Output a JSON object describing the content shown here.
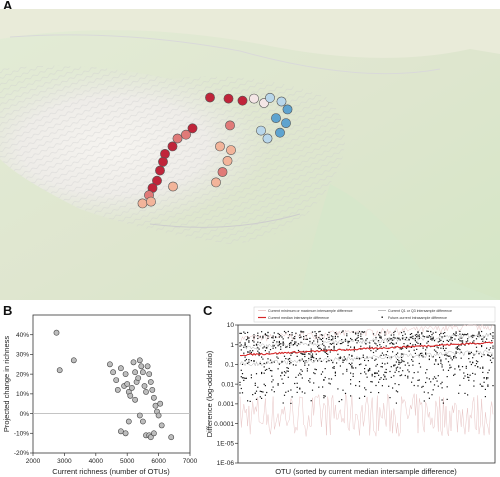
{
  "panels": {
    "a": "A",
    "b": "B",
    "c": "C"
  },
  "colors": {
    "red_dark": "#c0243a",
    "red_mid": "#e07a78",
    "salmon": "#f2b49a",
    "pale": "#f4e6e6",
    "light_blue": "#b8d6ea",
    "blue": "#5ea3cf",
    "outline": "#555555",
    "median_line": "#d62728",
    "q_line": "#b0b0b0",
    "minmax_line": "#e8c4c4"
  },
  "map": {
    "sites": [
      {
        "lon": 0.42,
        "lat": 0.304,
        "c": "red_dark"
      },
      {
        "lon": 0.457,
        "lat": 0.308,
        "c": "red_dark"
      },
      {
        "lon": 0.485,
        "lat": 0.315,
        "c": "red_dark"
      },
      {
        "lon": 0.508,
        "lat": 0.308,
        "c": "pale"
      },
      {
        "lon": 0.528,
        "lat": 0.323,
        "c": "pale"
      },
      {
        "lon": 0.54,
        "lat": 0.305,
        "c": "light_blue"
      },
      {
        "lon": 0.563,
        "lat": 0.318,
        "c": "light_blue"
      },
      {
        "lon": 0.575,
        "lat": 0.345,
        "c": "blue"
      },
      {
        "lon": 0.552,
        "lat": 0.375,
        "c": "blue"
      },
      {
        "lon": 0.572,
        "lat": 0.392,
        "c": "blue"
      },
      {
        "lon": 0.56,
        "lat": 0.425,
        "c": "blue"
      },
      {
        "lon": 0.535,
        "lat": 0.445,
        "c": "light_blue"
      },
      {
        "lon": 0.522,
        "lat": 0.418,
        "c": "light_blue"
      },
      {
        "lon": 0.46,
        "lat": 0.4,
        "c": "red_mid"
      },
      {
        "lon": 0.44,
        "lat": 0.472,
        "c": "salmon"
      },
      {
        "lon": 0.462,
        "lat": 0.485,
        "c": "salmon"
      },
      {
        "lon": 0.455,
        "lat": 0.522,
        "c": "salmon"
      },
      {
        "lon": 0.445,
        "lat": 0.56,
        "c": "red_mid"
      },
      {
        "lon": 0.432,
        "lat": 0.596,
        "c": "salmon"
      },
      {
        "lon": 0.385,
        "lat": 0.41,
        "c": "red_dark"
      },
      {
        "lon": 0.372,
        "lat": 0.432,
        "c": "red_mid"
      },
      {
        "lon": 0.355,
        "lat": 0.445,
        "c": "red_mid"
      },
      {
        "lon": 0.345,
        "lat": 0.472,
        "c": "red_dark"
      },
      {
        "lon": 0.33,
        "lat": 0.498,
        "c": "red_dark"
      },
      {
        "lon": 0.326,
        "lat": 0.525,
        "c": "red_dark"
      },
      {
        "lon": 0.32,
        "lat": 0.555,
        "c": "red_dark"
      },
      {
        "lon": 0.314,
        "lat": 0.59,
        "c": "red_dark"
      },
      {
        "lon": 0.305,
        "lat": 0.615,
        "c": "red_dark"
      },
      {
        "lon": 0.298,
        "lat": 0.64,
        "c": "red_mid"
      },
      {
        "lon": 0.285,
        "lat": 0.668,
        "c": "salmon"
      },
      {
        "lon": 0.302,
        "lat": 0.662,
        "c": "salmon"
      },
      {
        "lon": 0.346,
        "lat": 0.61,
        "c": "salmon"
      }
    ]
  },
  "chart_data": [
    {
      "type": "scatter",
      "panel": "B",
      "xlabel": "Current richness (number of OTUs)",
      "ylabel": "Projected change in richness",
      "xlim": [
        2000,
        7000
      ],
      "ylim": [
        -20,
        50
      ],
      "xticks": [
        2000,
        3000,
        4000,
        5000,
        6000,
        7000
      ],
      "xtick_labels": [
        "2000",
        "3000",
        "4000",
        "5000",
        "6000",
        "7000"
      ],
      "yticks": [
        -20,
        -10,
        0,
        10,
        20,
        30,
        40
      ],
      "ytick_labels": [
        "-20%",
        "-10%",
        "0%",
        "10%",
        "20%",
        "30%",
        "40%"
      ],
      "reference_line_y": 0,
      "points": [
        [
          2750,
          41
        ],
        [
          2850,
          22
        ],
        [
          3300,
          27
        ],
        [
          4450,
          25
        ],
        [
          4550,
          21
        ],
        [
          4650,
          17
        ],
        [
          4700,
          12
        ],
        [
          4800,
          23
        ],
        [
          4900,
          14
        ],
        [
          4950,
          20
        ],
        [
          5000,
          15
        ],
        [
          5050,
          11
        ],
        [
          5100,
          9
        ],
        [
          5150,
          13
        ],
        [
          5200,
          26
        ],
        [
          5250,
          21
        ],
        [
          5300,
          16
        ],
        [
          5350,
          18
        ],
        [
          5400,
          27
        ],
        [
          5450,
          24
        ],
        [
          5500,
          21
        ],
        [
          5550,
          14
        ],
        [
          5600,
          11
        ],
        [
          5650,
          24
        ],
        [
          5700,
          20
        ],
        [
          5750,
          16
        ],
        [
          5800,
          12
        ],
        [
          5850,
          8
        ],
        [
          5900,
          4
        ],
        [
          5950,
          1
        ],
        [
          6000,
          -1
        ],
        [
          6050,
          5
        ],
        [
          4800,
          -9
        ],
        [
          4950,
          -10
        ],
        [
          5050,
          -4
        ],
        [
          5500,
          -4
        ],
        [
          5600,
          -11
        ],
        [
          5700,
          -11
        ],
        [
          5750,
          -12
        ],
        [
          5850,
          -10
        ],
        [
          6100,
          -6
        ],
        [
          6400,
          -12
        ],
        [
          5400,
          -1
        ],
        [
          5250,
          7
        ]
      ]
    },
    {
      "type": "line",
      "panel": "C",
      "xlabel": "OTU (sorted by current median intersample difference)",
      "ylabel": "Difference (log-odds ratio)",
      "yscale": "log",
      "ylim": [
        1e-06,
        10
      ],
      "yticks": [
        10,
        1,
        0.1,
        0.01,
        0.001,
        0.0001,
        1e-05,
        1e-06
      ],
      "ytick_labels": [
        "10",
        "1",
        "0.1",
        "0.01",
        "0.001",
        "0.0001",
        "1E-05",
        "1E-06"
      ],
      "legend": {
        "placement": "top",
        "entries": [
          "Current minimum or maximum intersample difference",
          "Current Q1 or Q3 intersample difference",
          "Current median intersample difference",
          "Future-current intrasample difference"
        ]
      },
      "series": [
        {
          "name": "Current median intersample difference",
          "start": 0.3,
          "end": 1.3
        },
        {
          "name": "Current Q1 or Q3 intersample difference",
          "q1": 0.1,
          "q3": 3
        },
        {
          "name": "Current minimum or maximum intersample difference",
          "min": 0.0001,
          "max": 10
        },
        {
          "name": "Future-current intrasample difference",
          "range": [
            0.001,
            5
          ]
        }
      ]
    }
  ]
}
